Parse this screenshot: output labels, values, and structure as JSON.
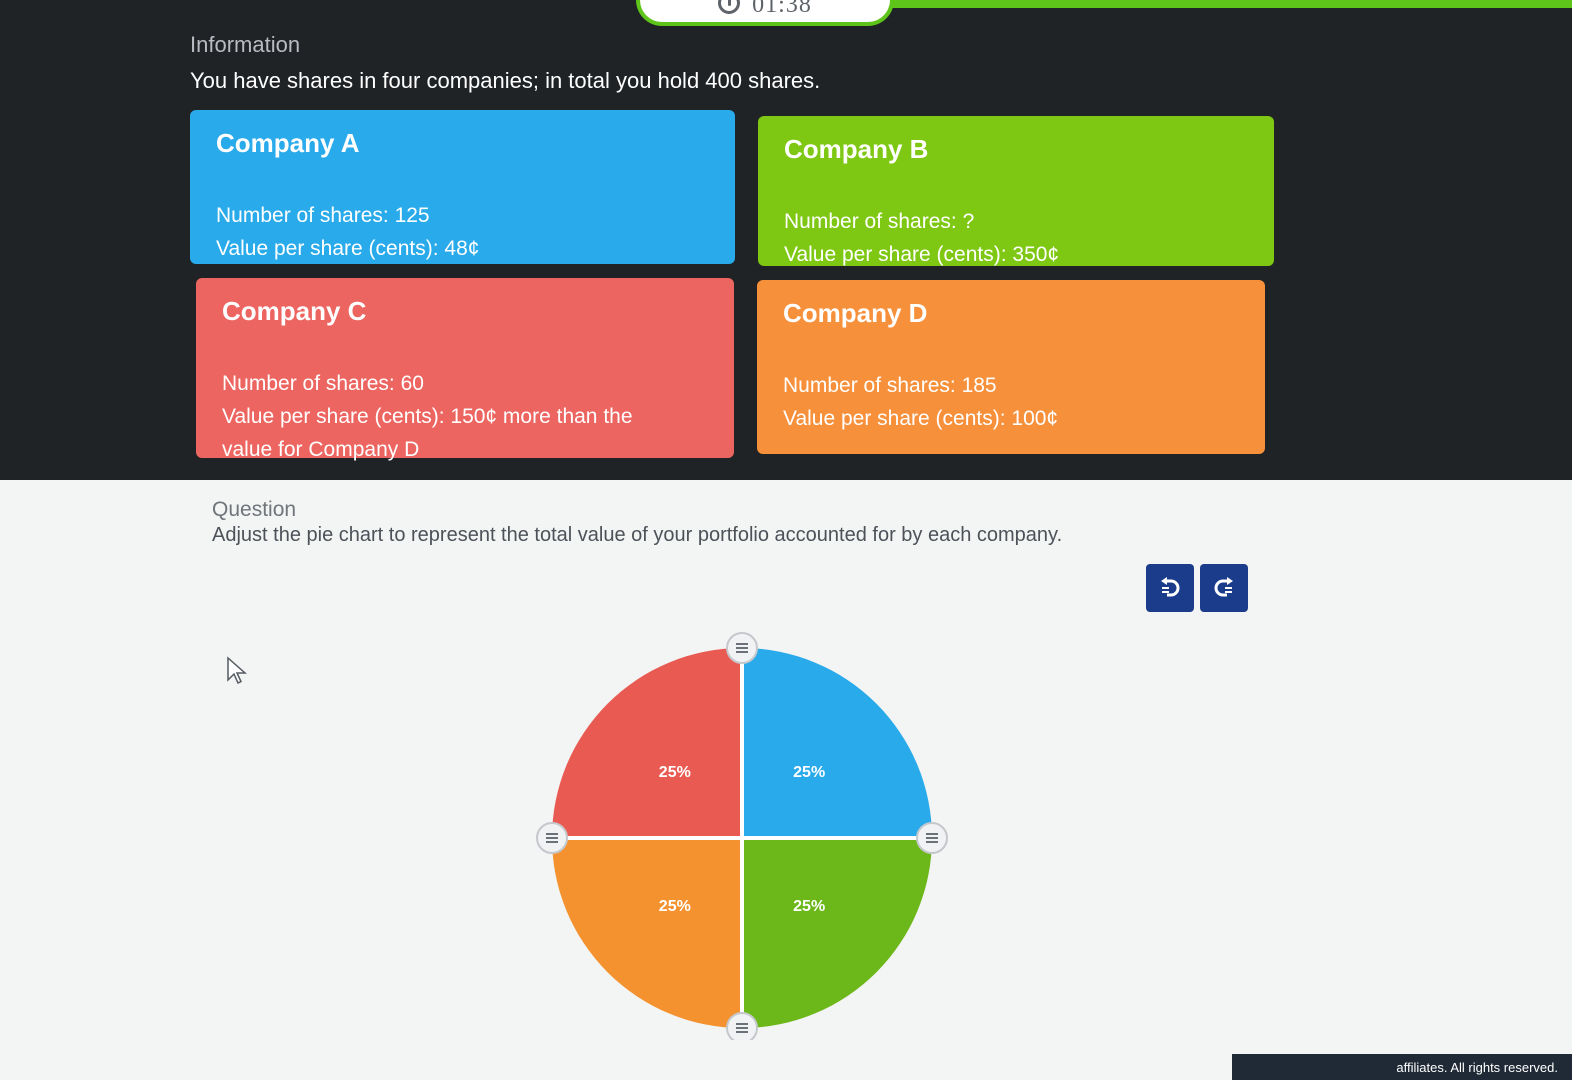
{
  "timer": {
    "value": "01:38"
  },
  "information": {
    "heading": "Information",
    "text": "You have shares in four companies; in total you hold 400 shares."
  },
  "companies": [
    {
      "title": "Company A",
      "shares": "Number of shares: 125",
      "value": "Value per share (cents): 48¢",
      "color": "#29aaea"
    },
    {
      "title": "Company B",
      "shares": "Number of shares: ?",
      "value": "Value per share (cents): 350¢",
      "color": "#7ec814"
    },
    {
      "title": "Company C",
      "shares": "Number of shares: 60",
      "value": "Value per share (cents): 150¢ more than the",
      "value_cont": "value for Company D",
      "color": "#ec6560"
    },
    {
      "title": "Company D",
      "shares": "Number of shares: 185",
      "value": "Value per share (cents): 100¢",
      "color": "#f7903b"
    }
  ],
  "question": {
    "heading": "Question",
    "text": "Adjust the pie chart to represent the total value of your portfolio accounted for by each company."
  },
  "toolbar": {
    "undo_icon": "undo-icon",
    "redo_icon": "redo-icon",
    "accent": "#1a3c8a"
  },
  "chart_data": {
    "type": "pie",
    "slices": [
      {
        "label": "25%",
        "value": 25,
        "color": "#29aaea"
      },
      {
        "label": "25%",
        "value": 25,
        "color": "#6cb81a"
      },
      {
        "label": "25%",
        "value": 25,
        "color": "#f4922f"
      },
      {
        "label": "25%",
        "value": 25,
        "color": "#e95b52"
      }
    ]
  },
  "footer": {
    "text": "affiliates. All rights reserved."
  }
}
